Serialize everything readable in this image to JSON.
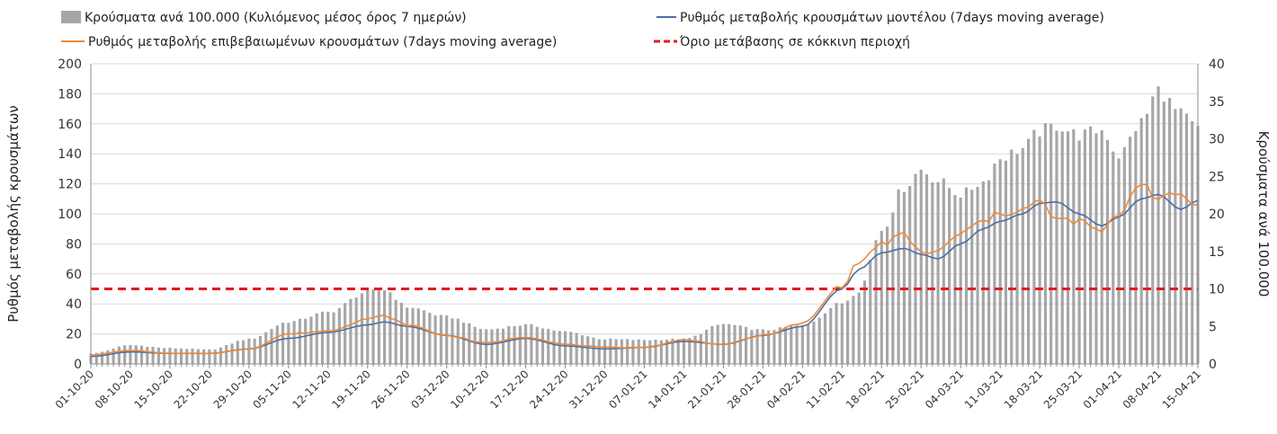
{
  "chart_data": {
    "type": "bar+line",
    "ylabel_left": "Ρυθμός μεταβολής κρουσμάτων",
    "ylabel_right": "Κρούσματα ανά 100.000",
    "ylim_left": [
      0,
      200
    ],
    "ylim_right": [
      0,
      40
    ],
    "yticks_left": [
      0,
      20,
      40,
      60,
      80,
      100,
      120,
      140,
      160,
      180,
      200
    ],
    "yticks_right": [
      0,
      5,
      10,
      15,
      20,
      25,
      30,
      35,
      40
    ],
    "x_start_date": "2020-10-01",
    "num_days": 197,
    "xtick_labels": [
      "01-10-20",
      "08-10-20",
      "15-10-20",
      "22-10-20",
      "29-10-20",
      "05-11-20",
      "12-11-20",
      "19-11-20",
      "26-11-20",
      "03-12-20",
      "10-12-20",
      "17-12-20",
      "24-12-20",
      "31-12-20",
      "07-01-21",
      "14-01-21",
      "21-01-21",
      "28-01-21",
      "04-02-21",
      "11-02-21",
      "18-02-21",
      "25-02-21",
      "04-03-21",
      "11-03-21",
      "18-03-21",
      "25-03-21",
      "01-04-21",
      "08-04-21",
      "15-04-21"
    ],
    "legend": [
      {
        "key": "bars",
        "label": "Κρούσματα ανά 100.000 (Κυλιόμενος μέσος όρος 7 ημερών)",
        "color": "#a6a6a6"
      },
      {
        "key": "model",
        "label": "Ρυθμός μεταβολής κρουσμάτων μοντέλου (7days moving average)",
        "color": "#4a6fa5"
      },
      {
        "key": "confirmed",
        "label": "Ρυθμός μεταβολής επιβεβαιωμένων κρουσμάτων (7days moving average)",
        "color": "#ed8a3b"
      },
      {
        "key": "threshold",
        "label": "Όριο μετάβασης σε κόκκινη περιοχή",
        "color": "#e31a1c"
      }
    ],
    "threshold_value": 50,
    "series": [
      {
        "name": "Κρούσματα ανά 100.000",
        "axis": "right",
        "anchors": [
          [
            0,
            1.4
          ],
          [
            7,
            2.5
          ],
          [
            14,
            2.1
          ],
          [
            21,
            1.9
          ],
          [
            28,
            3.3
          ],
          [
            35,
            5.6
          ],
          [
            42,
            6.9
          ],
          [
            49,
            9.6
          ],
          [
            52,
            9.9
          ],
          [
            56,
            7.6
          ],
          [
            63,
            6.3
          ],
          [
            70,
            4.6
          ],
          [
            77,
            5.2
          ],
          [
            84,
            4.3
          ],
          [
            91,
            3.3
          ],
          [
            98,
            3.2
          ],
          [
            105,
            3.3
          ],
          [
            112,
            5.3
          ],
          [
            119,
            4.5
          ],
          [
            126,
            5.1
          ],
          [
            133,
            8.1
          ],
          [
            136,
            9.8
          ],
          [
            140,
            17.9
          ],
          [
            144,
            23.5
          ],
          [
            147,
            25.9
          ],
          [
            150,
            24.4
          ],
          [
            154,
            22.6
          ],
          [
            158,
            24.3
          ],
          [
            161,
            27.5
          ],
          [
            165,
            28.7
          ],
          [
            168,
            31.0
          ],
          [
            171,
            31.8
          ],
          [
            175,
            30.5
          ],
          [
            179,
            31.2
          ],
          [
            182,
            27.8
          ],
          [
            186,
            32.2
          ],
          [
            189,
            36.5
          ],
          [
            193,
            33.2
          ],
          [
            196,
            31.3
          ]
        ]
      },
      {
        "name": "Ρυθμός μεταβολής κρουσμάτων μοντέλου",
        "axis": "left",
        "anchors": [
          [
            0,
            5
          ],
          [
            7,
            8
          ],
          [
            14,
            7
          ],
          [
            21,
            7
          ],
          [
            28,
            10
          ],
          [
            35,
            17
          ],
          [
            42,
            21
          ],
          [
            49,
            26
          ],
          [
            52,
            28
          ],
          [
            56,
            25
          ],
          [
            63,
            19
          ],
          [
            70,
            13
          ],
          [
            77,
            17
          ],
          [
            84,
            12
          ],
          [
            91,
            10
          ],
          [
            98,
            11
          ],
          [
            105,
            15
          ],
          [
            112,
            13
          ],
          [
            119,
            19
          ],
          [
            126,
            25
          ],
          [
            133,
            50
          ],
          [
            136,
            63
          ],
          [
            140,
            74
          ],
          [
            144,
            77
          ],
          [
            147,
            73
          ],
          [
            150,
            70
          ],
          [
            154,
            80
          ],
          [
            158,
            90
          ],
          [
            161,
            95
          ],
          [
            165,
            100
          ],
          [
            168,
            107
          ],
          [
            171,
            108
          ],
          [
            175,
            100
          ],
          [
            179,
            92
          ],
          [
            182,
            98
          ],
          [
            186,
            110
          ],
          [
            189,
            113
          ],
          [
            193,
            103
          ],
          [
            196,
            109
          ]
        ]
      },
      {
        "name": "Ρυθμός μεταβολής επιβεβαιωμένων κρουσμάτων",
        "axis": "left",
        "anchors": [
          [
            0,
            6
          ],
          [
            7,
            9
          ],
          [
            14,
            7
          ],
          [
            21,
            7
          ],
          [
            28,
            10
          ],
          [
            35,
            20
          ],
          [
            42,
            22
          ],
          [
            49,
            30
          ],
          [
            52,
            32
          ],
          [
            56,
            26
          ],
          [
            63,
            19
          ],
          [
            70,
            14
          ],
          [
            77,
            18
          ],
          [
            84,
            13
          ],
          [
            91,
            11
          ],
          [
            98,
            11
          ],
          [
            105,
            16
          ],
          [
            112,
            13
          ],
          [
            119,
            19
          ],
          [
            126,
            27
          ],
          [
            133,
            52
          ],
          [
            136,
            68
          ],
          [
            140,
            80
          ],
          [
            144,
            86
          ],
          [
            147,
            74
          ],
          [
            150,
            75
          ],
          [
            154,
            87
          ],
          [
            158,
            95
          ],
          [
            161,
            100
          ],
          [
            165,
            103
          ],
          [
            168,
            108
          ],
          [
            171,
            96
          ],
          [
            175,
            95
          ],
          [
            179,
            88
          ],
          [
            182,
            100
          ],
          [
            186,
            122
          ],
          [
            189,
            110
          ],
          [
            193,
            113
          ],
          [
            196,
            105
          ]
        ]
      }
    ]
  }
}
